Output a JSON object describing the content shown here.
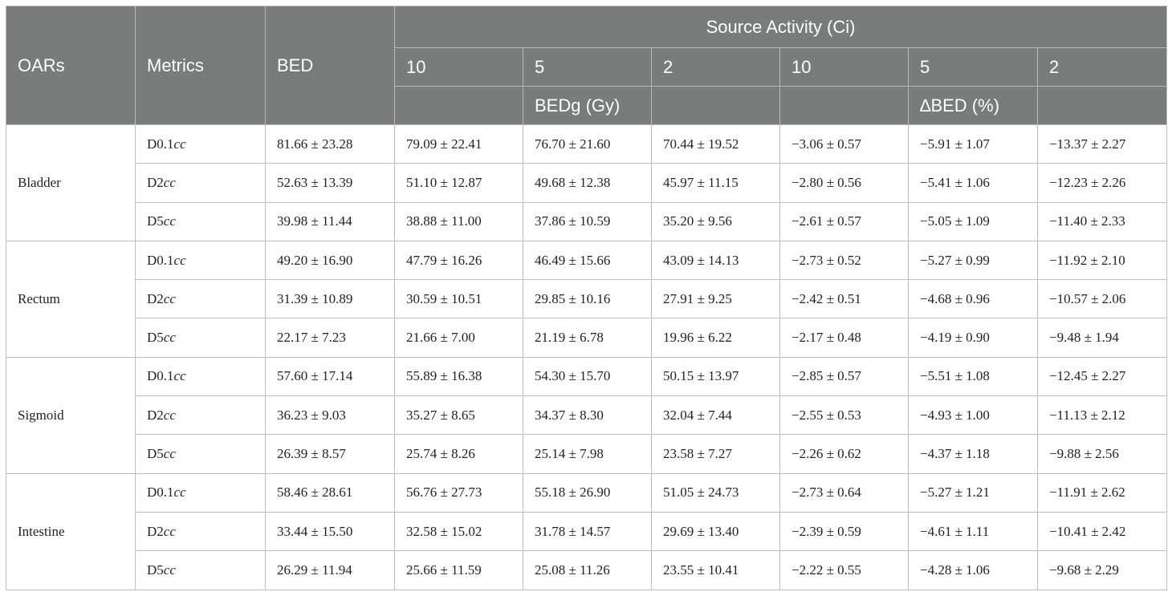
{
  "header": {
    "oars": "OARs",
    "metrics": "Metrics",
    "bed": "BED",
    "source_activity": "Source Activity (Ci)",
    "activities": [
      "10",
      "5",
      "2",
      "10",
      "5",
      "2"
    ],
    "bedg": "BEDg (Gy)",
    "delta_bed": "∆BED (%)"
  },
  "groups": [
    {
      "organ": "Bladder",
      "rows": [
        {
          "metric_prefix": "D0.1",
          "metric_unit": "cc",
          "values": [
            "81.66 ± 23.28",
            "79.09 ± 22.41",
            "76.70 ± 21.60",
            "70.44 ± 19.52",
            "−3.06 ± 0.57",
            "−5.91 ± 1.07",
            "−13.37 ± 2.27"
          ]
        },
        {
          "metric_prefix": "D2",
          "metric_unit": "cc",
          "values": [
            "52.63 ± 13.39",
            "51.10 ± 12.87",
            "49.68 ± 12.38",
            "45.97 ± 11.15",
            "−2.80 ± 0.56",
            "−5.41 ± 1.06",
            "−12.23 ± 2.26"
          ]
        },
        {
          "metric_prefix": "D5",
          "metric_unit": "cc",
          "values": [
            "39.98 ± 11.44",
            "38.88 ± 11.00",
            "37.86 ± 10.59",
            "35.20 ± 9.56",
            "−2.61 ± 0.57",
            "−5.05 ± 1.09",
            "−11.40 ± 2.33"
          ]
        }
      ]
    },
    {
      "organ": "Rectum",
      "rows": [
        {
          "metric_prefix": "D0.1",
          "metric_unit": "cc",
          "values": [
            "49.20 ± 16.90",
            "47.79 ± 16.26",
            "46.49 ± 15.66",
            "43.09 ± 14.13",
            "−2.73 ± 0.52",
            "−5.27 ± 0.99",
            "−11.92 ± 2.10"
          ]
        },
        {
          "metric_prefix": "D2",
          "metric_unit": "cc",
          "values": [
            "31.39 ± 10.89",
            "30.59 ± 10.51",
            "29.85 ± 10.16",
            "27.91 ± 9.25",
            "−2.42 ± 0.51",
            "−4.68 ± 0.96",
            "−10.57 ± 2.06"
          ]
        },
        {
          "metric_prefix": "D5",
          "metric_unit": "cc",
          "values": [
            "22.17 ± 7.23",
            "21.66 ± 7.00",
            "21.19 ± 6.78",
            "19.96 ± 6.22",
            "−2.17 ± 0.48",
            "−4.19 ± 0.90",
            "−9.48 ± 1.94"
          ]
        }
      ]
    },
    {
      "organ": "Sigmoid",
      "rows": [
        {
          "metric_prefix": "D0.1",
          "metric_unit": "cc",
          "values": [
            "57.60 ± 17.14",
            "55.89 ± 16.38",
            "54.30 ± 15.70",
            "50.15 ± 13.97",
            "−2.85 ± 0.57",
            "−5.51 ± 1.08",
            "−12.45 ± 2.27"
          ]
        },
        {
          "metric_prefix": "D2",
          "metric_unit": "cc",
          "values": [
            "36.23 ± 9.03",
            "35.27 ± 8.65",
            "34.37 ± 8.30",
            "32.04 ± 7.44",
            "−2.55 ± 0.53",
            "−4.93 ± 1.00",
            "−11.13 ± 2.12"
          ]
        },
        {
          "metric_prefix": "D5",
          "metric_unit": "cc",
          "values": [
            "26.39 ± 8.57",
            "25.74 ± 8.26",
            "25.14 ± 7.98",
            "23.58 ± 7.27",
            "−2.26 ± 0.62",
            "−4.37 ± 1.18",
            "−9.88 ± 2.56"
          ]
        }
      ]
    },
    {
      "organ": "Intestine",
      "rows": [
        {
          "metric_prefix": "D0.1",
          "metric_unit": "cc",
          "values": [
            "58.46 ± 28.61",
            "56.76 ± 27.73",
            "55.18 ± 26.90",
            "51.05 ± 24.73",
            "−2.73 ± 0.64",
            "−5.27 ± 1.21",
            "−11.91 ± 2.62"
          ]
        },
        {
          "metric_prefix": "D2",
          "metric_unit": "cc",
          "values": [
            "33.44 ± 15.50",
            "32.58 ± 15.02",
            "31.78 ± 14.57",
            "29.69 ± 13.40",
            "−2.39 ± 0.59",
            "−4.61 ± 1.11",
            "−10.41 ± 2.42"
          ]
        },
        {
          "metric_prefix": "D5",
          "metric_unit": "cc",
          "values": [
            "26.29 ± 11.94",
            "25.66 ± 11.59",
            "25.08 ± 11.26",
            "23.55 ± 10.41",
            "−2.22 ± 0.55",
            "−4.28 ± 1.06",
            "−9.68 ± 2.29"
          ]
        }
      ]
    }
  ]
}
